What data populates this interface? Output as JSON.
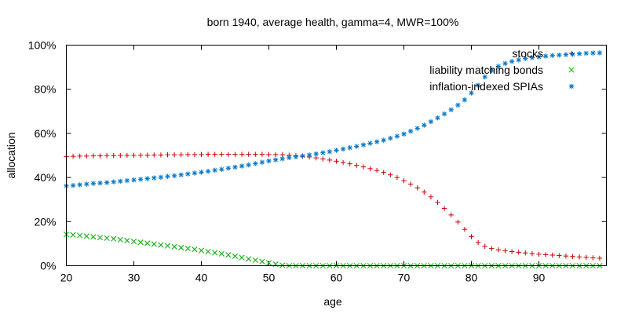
{
  "chart_data": {
    "type": "scatter",
    "title": "born 1940, average health, gamma=4, MWR=100%",
    "xlabel": "age",
    "ylabel": "allocation",
    "xlim": [
      20,
      100
    ],
    "ylim": [
      0,
      100
    ],
    "x_ticks": [
      20,
      30,
      40,
      50,
      60,
      70,
      80,
      90
    ],
    "x_tick_labels": [
      "20",
      "30",
      "40",
      "50",
      "60",
      "70",
      "80",
      "90"
    ],
    "y_ticks": [
      0,
      20,
      40,
      60,
      80,
      100
    ],
    "y_tick_labels": [
      "0%",
      "20%",
      "40%",
      "60%",
      "80%",
      "100%"
    ],
    "grid": false,
    "legend_position": "top-right",
    "x": [
      20,
      21,
      22,
      23,
      24,
      25,
      26,
      27,
      28,
      29,
      30,
      31,
      32,
      33,
      34,
      35,
      36,
      37,
      38,
      39,
      40,
      41,
      42,
      43,
      44,
      45,
      46,
      47,
      48,
      49,
      50,
      51,
      52,
      53,
      54,
      55,
      56,
      57,
      58,
      59,
      60,
      61,
      62,
      63,
      64,
      65,
      66,
      67,
      68,
      69,
      70,
      71,
      72,
      73,
      74,
      75,
      76,
      77,
      78,
      79,
      80,
      81,
      82,
      83,
      84,
      85,
      86,
      87,
      88,
      89,
      90,
      91,
      92,
      93,
      94,
      95,
      96,
      97,
      98,
      99
    ],
    "series": [
      {
        "name": "stocks",
        "color": "#cc0000",
        "marker": "plus",
        "values": [
          49.5,
          49.6,
          49.7,
          49.7,
          49.8,
          49.8,
          49.9,
          49.9,
          50,
          50,
          50,
          50.1,
          50.1,
          50.2,
          50.2,
          50.3,
          50.3,
          50.3,
          50.4,
          50.4,
          50.4,
          50.5,
          50.5,
          50.5,
          50.5,
          50.5,
          50.5,
          50.5,
          50.5,
          50.5,
          50.4,
          50.4,
          50.3,
          50.1,
          49.9,
          49.6,
          49.3,
          48.9,
          48.4,
          47.9,
          47.4,
          46.8,
          46.2,
          45.5,
          44.8,
          44,
          43.2,
          42.3,
          41.2,
          40,
          38.5,
          37,
          35.3,
          33.4,
          31.2,
          28.7,
          26,
          23,
          19.8,
          16.5,
          13.2,
          10.5,
          8.8,
          7.8,
          7.2,
          6.8,
          6.4,
          6.1,
          5.8,
          5.5,
          5.2,
          5,
          4.8,
          4.6,
          4.4,
          4.2,
          4,
          3.8,
          3.6,
          3.4
        ]
      },
      {
        "name": "liability matching bonds",
        "color": "#00aa00",
        "marker": "cross",
        "values": [
          14.2,
          14,
          13.7,
          13.4,
          13.1,
          12.8,
          12.5,
          12.2,
          11.8,
          11.4,
          11,
          10.6,
          10.2,
          9.8,
          9.4,
          9,
          8.6,
          8.2,
          7.8,
          7.4,
          6.9,
          6.4,
          5.9,
          5.4,
          4.9,
          4.3,
          3.7,
          3.1,
          2.5,
          1.9,
          1.3,
          0.7,
          0.2,
          0,
          0,
          0,
          0,
          0,
          0,
          0,
          0,
          0,
          0,
          0,
          0,
          0,
          0,
          0,
          0,
          0,
          0,
          0,
          0,
          0,
          0,
          0,
          0,
          0,
          0,
          0,
          0,
          0,
          0,
          0,
          0,
          0,
          0,
          0,
          0,
          0,
          0,
          0,
          0,
          0,
          0,
          0,
          0,
          0,
          0,
          0
        ]
      },
      {
        "name": "inflation-indexed SPIAs",
        "color": "#0077cc",
        "marker": "star",
        "values": [
          36.2,
          36.4,
          36.7,
          37,
          37.3,
          37.5,
          37.7,
          38,
          38.3,
          38.6,
          38.9,
          39.2,
          39.5,
          39.8,
          40.1,
          40.5,
          40.8,
          41.2,
          41.6,
          42,
          42.4,
          42.8,
          43.3,
          43.7,
          44.2,
          44.7,
          45.2,
          45.7,
          46.3,
          46.9,
          47.5,
          48,
          48.5,
          49,
          49.4,
          49.8,
          50.2,
          50.7,
          51.2,
          51.7,
          52.3,
          52.9,
          53.5,
          54.1,
          54.8,
          55.5,
          56.2,
          56.9,
          57.8,
          58.7,
          59.7,
          61,
          62.3,
          63.7,
          65.3,
          67,
          68.8,
          70.7,
          72.8,
          75.2,
          78.3,
          81.8,
          85.6,
          88.5,
          90.4,
          91.7,
          92.6,
          93.3,
          93.9,
          94.3,
          94.7,
          95,
          95.3,
          95.5,
          95.7,
          95.9,
          96.1,
          96.3,
          96.4,
          96.5
        ]
      }
    ]
  }
}
